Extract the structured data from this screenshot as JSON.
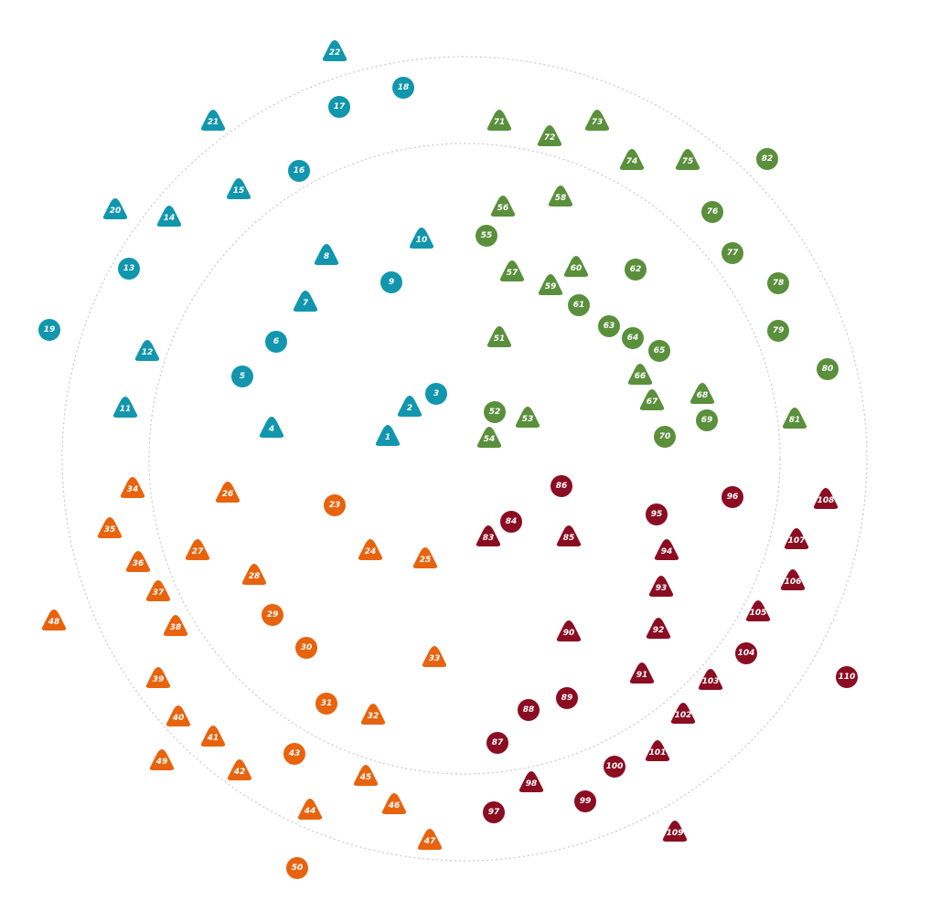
{
  "colors": {
    "quadrant_1": "#1196ad",
    "quadrant_2": "#5a8f3c",
    "quadrant_3": "#e8630e",
    "quadrant_4": "#8b0d22",
    "ring": "#c8c8c8",
    "label": "#ffffff",
    "background": "#ffffff"
  },
  "markers": [
    {
      "label": "1",
      "group": "quadrant_1",
      "shape": "triangle"
    },
    {
      "label": "2",
      "group": "quadrant_1",
      "shape": "triangle"
    },
    {
      "label": "3",
      "group": "quadrant_1",
      "shape": "circle"
    },
    {
      "label": "4",
      "group": "quadrant_1",
      "shape": "triangle"
    },
    {
      "label": "5",
      "group": "quadrant_1",
      "shape": "circle"
    },
    {
      "label": "6",
      "group": "quadrant_1",
      "shape": "circle"
    },
    {
      "label": "7",
      "group": "quadrant_1",
      "shape": "triangle"
    },
    {
      "label": "8",
      "group": "quadrant_1",
      "shape": "triangle"
    },
    {
      "label": "9",
      "group": "quadrant_1",
      "shape": "circle"
    },
    {
      "label": "10",
      "group": "quadrant_1",
      "shape": "triangle"
    },
    {
      "label": "11",
      "group": "quadrant_1",
      "shape": "triangle"
    },
    {
      "label": "12",
      "group": "quadrant_1",
      "shape": "triangle"
    },
    {
      "label": "13",
      "group": "quadrant_1",
      "shape": "circle"
    },
    {
      "label": "14",
      "group": "quadrant_1",
      "shape": "triangle"
    },
    {
      "label": "15",
      "group": "quadrant_1",
      "shape": "triangle"
    },
    {
      "label": "16",
      "group": "quadrant_1",
      "shape": "circle"
    },
    {
      "label": "17",
      "group": "quadrant_1",
      "shape": "circle"
    },
    {
      "label": "18",
      "group": "quadrant_1",
      "shape": "circle"
    },
    {
      "label": "19",
      "group": "quadrant_1",
      "shape": "circle"
    },
    {
      "label": "20",
      "group": "quadrant_1",
      "shape": "triangle"
    },
    {
      "label": "21",
      "group": "quadrant_1",
      "shape": "triangle"
    },
    {
      "label": "22",
      "group": "quadrant_1",
      "shape": "triangle"
    },
    {
      "label": "23",
      "group": "quadrant_3",
      "shape": "circle"
    },
    {
      "label": "24",
      "group": "quadrant_3",
      "shape": "triangle"
    },
    {
      "label": "25",
      "group": "quadrant_3",
      "shape": "triangle"
    },
    {
      "label": "26",
      "group": "quadrant_3",
      "shape": "triangle"
    },
    {
      "label": "27",
      "group": "quadrant_3",
      "shape": "triangle"
    },
    {
      "label": "28",
      "group": "quadrant_3",
      "shape": "triangle"
    },
    {
      "label": "29",
      "group": "quadrant_3",
      "shape": "circle"
    },
    {
      "label": "30",
      "group": "quadrant_3",
      "shape": "circle"
    },
    {
      "label": "31",
      "group": "quadrant_3",
      "shape": "circle"
    },
    {
      "label": "32",
      "group": "quadrant_3",
      "shape": "triangle"
    },
    {
      "label": "33",
      "group": "quadrant_3",
      "shape": "triangle"
    },
    {
      "label": "34",
      "group": "quadrant_3",
      "shape": "triangle"
    },
    {
      "label": "35",
      "group": "quadrant_3",
      "shape": "triangle"
    },
    {
      "label": "36",
      "group": "quadrant_3",
      "shape": "triangle"
    },
    {
      "label": "37",
      "group": "quadrant_3",
      "shape": "triangle"
    },
    {
      "label": "38",
      "group": "quadrant_3",
      "shape": "triangle"
    },
    {
      "label": "39",
      "group": "quadrant_3",
      "shape": "triangle"
    },
    {
      "label": "40",
      "group": "quadrant_3",
      "shape": "triangle"
    },
    {
      "label": "41",
      "group": "quadrant_3",
      "shape": "triangle"
    },
    {
      "label": "42",
      "group": "quadrant_3",
      "shape": "triangle"
    },
    {
      "label": "43",
      "group": "quadrant_3",
      "shape": "circle"
    },
    {
      "label": "44",
      "group": "quadrant_3",
      "shape": "triangle"
    },
    {
      "label": "45",
      "group": "quadrant_3",
      "shape": "triangle"
    },
    {
      "label": "46",
      "group": "quadrant_3",
      "shape": "triangle"
    },
    {
      "label": "47",
      "group": "quadrant_3",
      "shape": "triangle"
    },
    {
      "label": "48",
      "group": "quadrant_3",
      "shape": "triangle"
    },
    {
      "label": "49",
      "group": "quadrant_3",
      "shape": "triangle"
    },
    {
      "label": "50",
      "group": "quadrant_3",
      "shape": "circle"
    },
    {
      "label": "51",
      "group": "quadrant_2",
      "shape": "triangle"
    },
    {
      "label": "52",
      "group": "quadrant_2",
      "shape": "circle"
    },
    {
      "label": "53",
      "group": "quadrant_2",
      "shape": "triangle"
    },
    {
      "label": "54",
      "group": "quadrant_2",
      "shape": "triangle"
    },
    {
      "label": "55",
      "group": "quadrant_2",
      "shape": "circle"
    },
    {
      "label": "56",
      "group": "quadrant_2",
      "shape": "triangle"
    },
    {
      "label": "57",
      "group": "quadrant_2",
      "shape": "triangle"
    },
    {
      "label": "58",
      "group": "quadrant_2",
      "shape": "triangle"
    },
    {
      "label": "59",
      "group": "quadrant_2",
      "shape": "triangle"
    },
    {
      "label": "60",
      "group": "quadrant_2",
      "shape": "triangle"
    },
    {
      "label": "61",
      "group": "quadrant_2",
      "shape": "circle"
    },
    {
      "label": "62",
      "group": "quadrant_2",
      "shape": "circle"
    },
    {
      "label": "63",
      "group": "quadrant_2",
      "shape": "circle"
    },
    {
      "label": "64",
      "group": "quadrant_2",
      "shape": "circle"
    },
    {
      "label": "65",
      "group": "quadrant_2",
      "shape": "circle"
    },
    {
      "label": "66",
      "group": "quadrant_2",
      "shape": "triangle"
    },
    {
      "label": "67",
      "group": "quadrant_2",
      "shape": "triangle"
    },
    {
      "label": "68",
      "group": "quadrant_2",
      "shape": "triangle"
    },
    {
      "label": "69",
      "group": "quadrant_2",
      "shape": "circle"
    },
    {
      "label": "70",
      "group": "quadrant_2",
      "shape": "circle"
    },
    {
      "label": "71",
      "group": "quadrant_2",
      "shape": "triangle"
    },
    {
      "label": "72",
      "group": "quadrant_2",
      "shape": "triangle"
    },
    {
      "label": "73",
      "group": "quadrant_2",
      "shape": "triangle"
    },
    {
      "label": "74",
      "group": "quadrant_2",
      "shape": "triangle"
    },
    {
      "label": "75",
      "group": "quadrant_2",
      "shape": "triangle"
    },
    {
      "label": "76",
      "group": "quadrant_2",
      "shape": "circle"
    },
    {
      "label": "77",
      "group": "quadrant_2",
      "shape": "circle"
    },
    {
      "label": "78",
      "group": "quadrant_2",
      "shape": "circle"
    },
    {
      "label": "79",
      "group": "quadrant_2",
      "shape": "circle"
    },
    {
      "label": "80",
      "group": "quadrant_2",
      "shape": "circle"
    },
    {
      "label": "81",
      "group": "quadrant_2",
      "shape": "triangle"
    },
    {
      "label": "82",
      "group": "quadrant_2",
      "shape": "circle"
    },
    {
      "label": "83",
      "group": "quadrant_4",
      "shape": "triangle"
    },
    {
      "label": "84",
      "group": "quadrant_4",
      "shape": "circle"
    },
    {
      "label": "85",
      "group": "quadrant_4",
      "shape": "triangle"
    },
    {
      "label": "86",
      "group": "quadrant_4",
      "shape": "circle"
    },
    {
      "label": "87",
      "group": "quadrant_4",
      "shape": "circle"
    },
    {
      "label": "88",
      "group": "quadrant_4",
      "shape": "circle"
    },
    {
      "label": "89",
      "group": "quadrant_4",
      "shape": "circle"
    },
    {
      "label": "90",
      "group": "quadrant_4",
      "shape": "triangle"
    },
    {
      "label": "91",
      "group": "quadrant_4",
      "shape": "triangle"
    },
    {
      "label": "92",
      "group": "quadrant_4",
      "shape": "triangle"
    },
    {
      "label": "93",
      "group": "quadrant_4",
      "shape": "triangle"
    },
    {
      "label": "94",
      "group": "quadrant_4",
      "shape": "triangle"
    },
    {
      "label": "95",
      "group": "quadrant_4",
      "shape": "circle"
    },
    {
      "label": "96",
      "group": "quadrant_4",
      "shape": "circle"
    },
    {
      "label": "97",
      "group": "quadrant_4",
      "shape": "circle"
    },
    {
      "label": "98",
      "group": "quadrant_4",
      "shape": "triangle"
    },
    {
      "label": "99",
      "group": "quadrant_4",
      "shape": "circle"
    },
    {
      "label": "100",
      "group": "quadrant_4",
      "shape": "circle"
    },
    {
      "label": "101",
      "group": "quadrant_4",
      "shape": "triangle"
    },
    {
      "label": "102",
      "group": "quadrant_4",
      "shape": "triangle"
    },
    {
      "label": "103",
      "group": "quadrant_4",
      "shape": "triangle"
    },
    {
      "label": "104",
      "group": "quadrant_4",
      "shape": "circle"
    },
    {
      "label": "105",
      "group": "quadrant_4",
      "shape": "triangle"
    },
    {
      "label": "106",
      "group": "quadrant_4",
      "shape": "triangle"
    },
    {
      "label": "107",
      "group": "quadrant_4",
      "shape": "triangle"
    },
    {
      "label": "108",
      "group": "quadrant_4",
      "shape": "triangle"
    },
    {
      "label": "109",
      "group": "quadrant_4",
      "shape": "triangle"
    },
    {
      "label": "110",
      "group": "quadrant_4",
      "shape": "circle"
    }
  ]
}
